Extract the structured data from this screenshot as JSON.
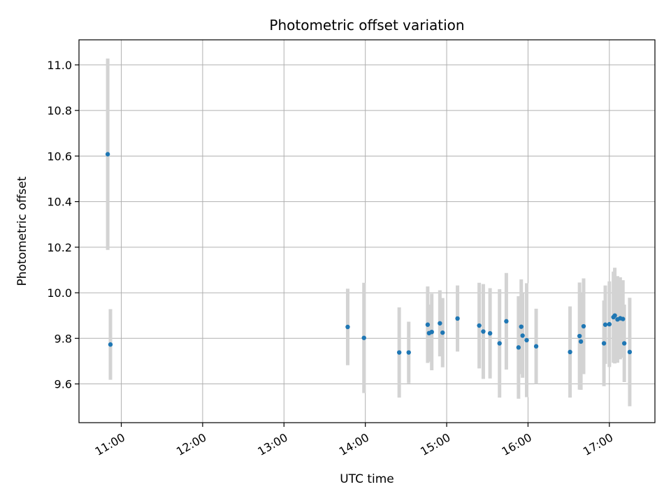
{
  "chart_data": {
    "type": "scatter",
    "title": "Photometric offset variation",
    "xlabel": "UTC time",
    "ylabel": "Photometric offset",
    "x_ticks": [
      "11:00",
      "12:00",
      "13:00",
      "14:00",
      "15:00",
      "16:00",
      "17:00"
    ],
    "x_tick_hours": [
      11,
      12,
      13,
      14,
      15,
      16,
      17
    ],
    "xlim_hours": [
      10.48,
      17.56
    ],
    "ylim": [
      9.43,
      11.11
    ],
    "y_ticks": [
      9.6,
      9.8,
      10.0,
      10.2,
      10.4,
      10.6,
      10.8,
      11.0
    ],
    "grid": true,
    "marker_color": "#1f77b4",
    "errorbar_color": "#d3d3d3",
    "points": [
      {
        "x": "10:50",
        "y": 10.608,
        "err": 0.42
      },
      {
        "x": "10:52",
        "y": 9.773,
        "err": 0.155
      },
      {
        "x": "13:47",
        "y": 9.85,
        "err": 0.168
      },
      {
        "x": "13:59",
        "y": 9.802,
        "err": 0.242
      },
      {
        "x": "14:25",
        "y": 9.738,
        "err": 0.198
      },
      {
        "x": "14:32",
        "y": 9.738,
        "err": 0.135
      },
      {
        "x": "14:46",
        "y": 9.86,
        "err": 0.168
      },
      {
        "x": "14:47",
        "y": 9.823,
        "err": 0.125
      },
      {
        "x": "14:49",
        "y": 9.828,
        "err": 0.168
      },
      {
        "x": "14:55",
        "y": 9.866,
        "err": 0.145
      },
      {
        "x": "14:57",
        "y": 9.825,
        "err": 0.152
      },
      {
        "x": "15:08",
        "y": 9.887,
        "err": 0.145
      },
      {
        "x": "15:24",
        "y": 9.856,
        "err": 0.188
      },
      {
        "x": "15:27",
        "y": 9.83,
        "err": 0.208
      },
      {
        "x": "15:32",
        "y": 9.822,
        "err": 0.198
      },
      {
        "x": "15:39",
        "y": 9.778,
        "err": 0.238
      },
      {
        "x": "15:44",
        "y": 9.875,
        "err": 0.212
      },
      {
        "x": "15:53",
        "y": 9.76,
        "err": 0.225
      },
      {
        "x": "15:55",
        "y": 9.851,
        "err": 0.208
      },
      {
        "x": "15:56",
        "y": 9.812,
        "err": 0.185
      },
      {
        "x": "15:59",
        "y": 9.792,
        "err": 0.25
      },
      {
        "x": "16:06",
        "y": 9.765,
        "err": 0.165
      },
      {
        "x": "16:31",
        "y": 9.74,
        "err": 0.2
      },
      {
        "x": "16:38",
        "y": 9.81,
        "err": 0.235
      },
      {
        "x": "16:39",
        "y": 9.786,
        "err": 0.212
      },
      {
        "x": "16:41",
        "y": 9.853,
        "err": 0.21
      },
      {
        "x": "16:56",
        "y": 9.778,
        "err": 0.188
      },
      {
        "x": "16:57",
        "y": 9.86,
        "err": 0.172
      },
      {
        "x": "17:00",
        "y": 9.862,
        "err": 0.188
      },
      {
        "x": "17:03",
        "y": 9.893,
        "err": 0.2
      },
      {
        "x": "17:04",
        "y": 9.9,
        "err": 0.21
      },
      {
        "x": "17:06",
        "y": 9.883,
        "err": 0.19
      },
      {
        "x": "17:08",
        "y": 9.888,
        "err": 0.18
      },
      {
        "x": "17:10",
        "y": 9.885,
        "err": 0.17
      },
      {
        "x": "17:11",
        "y": 9.778,
        "err": 0.17
      },
      {
        "x": "17:15",
        "y": 9.74,
        "err": 0.238
      }
    ]
  }
}
